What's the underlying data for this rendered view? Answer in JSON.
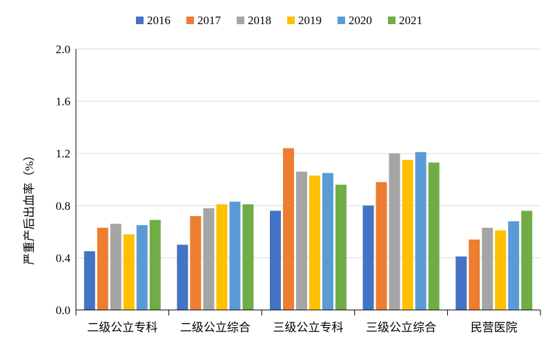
{
  "chart_data": {
    "type": "bar",
    "title": "",
    "xlabel": "",
    "ylabel": "严重产后出血率（%）",
    "ylim": [
      0,
      2.0
    ],
    "yticks": [
      "0.0",
      "0.4",
      "0.8",
      "1.2",
      "1.6",
      "2.0"
    ],
    "grid": true,
    "legend_position": "top",
    "categories": [
      "二级公立专科",
      "二级公立综合",
      "三级公立专科",
      "三级公立综合",
      "民营医院"
    ],
    "series": [
      {
        "name": "2016",
        "color": "#4472C4",
        "values": [
          0.45,
          0.5,
          0.76,
          0.8,
          0.41
        ]
      },
      {
        "name": "2017",
        "color": "#ED7D31",
        "values": [
          0.63,
          0.72,
          1.24,
          0.98,
          0.54
        ]
      },
      {
        "name": "2018",
        "color": "#A5A5A5",
        "values": [
          0.66,
          0.78,
          1.06,
          1.2,
          0.63
        ]
      },
      {
        "name": "2019",
        "color": "#FFC000",
        "values": [
          0.58,
          0.81,
          1.03,
          1.15,
          0.61
        ]
      },
      {
        "name": "2020",
        "color": "#5B9BD5",
        "values": [
          0.65,
          0.83,
          1.05,
          1.21,
          0.68
        ]
      },
      {
        "name": "2021",
        "color": "#70AD47",
        "values": [
          0.69,
          0.81,
          0.96,
          1.13,
          0.76
        ]
      }
    ]
  }
}
